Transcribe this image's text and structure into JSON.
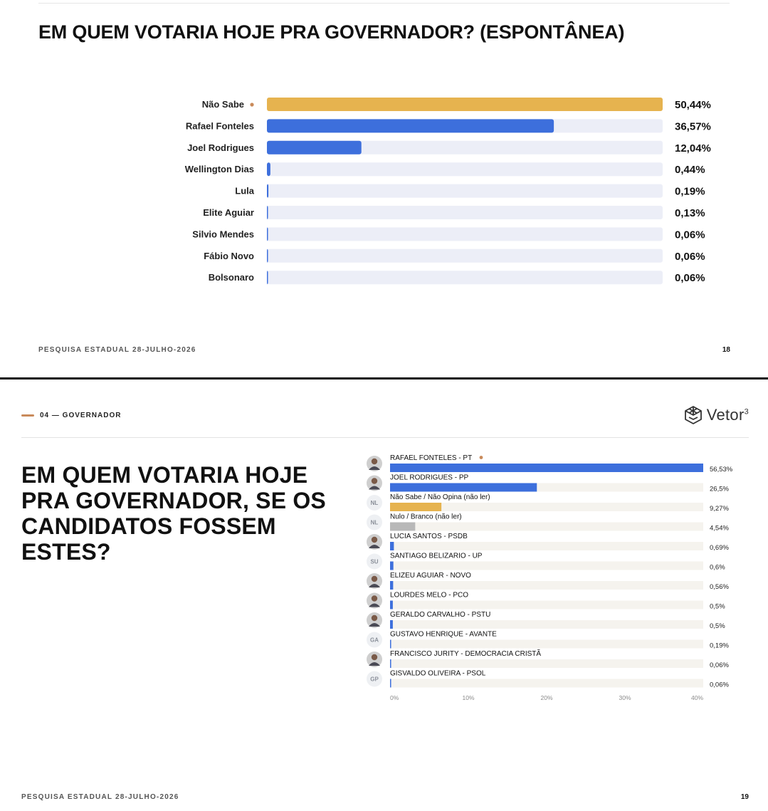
{
  "slide1": {
    "title": "EM QUEM VOTARIA HOJE PRA GOVERNADOR? (ESPONTÂNEA)",
    "footer": "PESQUISA ESTADUAL 28-JULHO-2026",
    "page_number": "18"
  },
  "slide2": {
    "section_label": "04 — GOVERNADOR",
    "logo_text": "Vetor",
    "logo_sup": "3",
    "title": "EM QUEM VOTARIA HOJE PRA GOVERNADOR, SE OS CANDIDATOS FOSSEM ESTES?",
    "footer": "PESQUISA ESTADUAL 28-JULHO-2026",
    "page_number": "19"
  },
  "colors": {
    "accent_orange": "#c98a5a",
    "bar_blue": "#3d6fdc",
    "bar_yellow": "#e6b34f",
    "bar_gray": "#b8b8b8",
    "track1": "#eceef7",
    "track2": "#f5f3ee"
  },
  "chart_data": [
    {
      "type": "bar",
      "orientation": "horizontal",
      "title": "EM QUEM VOTARIA HOJE PRA GOVERNADOR? (ESPONTÂNEA)",
      "categories": [
        "Não Sabe",
        "Rafael Fonteles",
        "Joel Rodrigues",
        "Wellington Dias",
        "Lula",
        "Elite Aguiar",
        "Silvio Mendes",
        "Fábio Novo",
        "Bolsonaro"
      ],
      "values": [
        50.44,
        36.57,
        12.04,
        0.44,
        0.19,
        0.13,
        0.06,
        0.06,
        0.06
      ],
      "value_labels": [
        "50,44%",
        "36,57%",
        "12,04%",
        "0,44%",
        "0,19%",
        "0,13%",
        "0,06%",
        "0,06%",
        "0,06%"
      ],
      "xlim": [
        0,
        50.44
      ],
      "highlight_marker_index": 0
    },
    {
      "type": "bar",
      "orientation": "horizontal",
      "title": "EM QUEM VOTARIA HOJE PRA GOVERNADOR, SE OS CANDIDATOS FOSSEM ESTES?",
      "categories": [
        "RAFAEL FONTELES - PT",
        "JOEL RODRIGUES - PP",
        "Não Sabe / Não Opina (não ler)",
        "Nulo / Branco (não ler)",
        "LUCIA SANTOS - PSDB",
        "SANTIAGO BELIZARIO - UP",
        "ELIZEU AGUIAR - NOVO",
        "LOURDES MELO - PCO",
        "GERALDO CARVALHO - PSTU",
        "GUSTAVO HENRIQUE - AVANTE",
        "FRANCISCO JURITY - DEMOCRACIA CRISTÃ",
        "GISVALDO OLIVEIRA - PSOL"
      ],
      "values": [
        56.53,
        26.5,
        9.27,
        4.54,
        0.69,
        0.6,
        0.56,
        0.5,
        0.5,
        0.19,
        0.06,
        0.06
      ],
      "value_labels": [
        "56,53%",
        "26,5%",
        "9,27%",
        "4,54%",
        "0,69%",
        "0,6%",
        "0,56%",
        "0,5%",
        "0,5%",
        "0,19%",
        "0,06%",
        "0,06%"
      ],
      "avatars": [
        "photo",
        "photo",
        "NL",
        "NL",
        "photo",
        "SU",
        "photo",
        "photo",
        "photo",
        "GA",
        "photo",
        "GP"
      ],
      "bar_kinds": [
        "blue",
        "blue",
        "yellow",
        "gray",
        "blue",
        "blue",
        "blue",
        "blue",
        "blue",
        "blue",
        "blue",
        "blue"
      ],
      "x_ticks": [
        "0%",
        "10%",
        "20%",
        "30%",
        "40%"
      ],
      "xlim": [
        0,
        56.53
      ],
      "highlight_marker_index": 0
    }
  ]
}
